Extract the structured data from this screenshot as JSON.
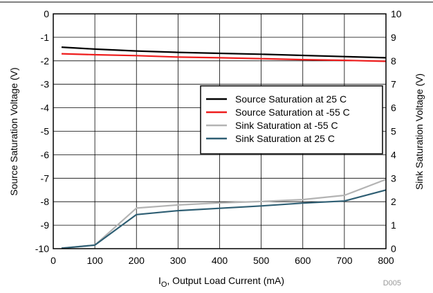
{
  "chart_data": {
    "type": "line",
    "xlabel_main": "I",
    "xlabel_sub": "O",
    "xlabel_rest": ", Output Load Current (mA)",
    "ylabel_left": "Source Saturation Voltage (V)",
    "ylabel_right": "Sink Saturation Voltage (V)",
    "watermark": "D005",
    "xlim": [
      0,
      800
    ],
    "ylim_left": [
      -10,
      0
    ],
    "ylim_right": [
      0,
      10
    ],
    "x_ticks": [
      "0",
      "100",
      "200",
      "300",
      "400",
      "500",
      "600",
      "700",
      "800"
    ],
    "y_left_ticks": [
      "0",
      "-1",
      "-2",
      "-3",
      "-4",
      "-5",
      "-6",
      "-7",
      "-8",
      "-9",
      "-10"
    ],
    "y_right_ticks": [
      "10",
      "9",
      "8",
      "7",
      "6",
      "5",
      "4",
      "3",
      "2",
      "1",
      "0"
    ],
    "grid": true,
    "legend_position": "center-right",
    "series": [
      {
        "name": "Source Saturation at 25 C",
        "axis": "left",
        "color": "#000000",
        "x": [
          20,
          100,
          200,
          300,
          400,
          500,
          600,
          700,
          800
        ],
        "y": [
          -1.42,
          -1.5,
          -1.58,
          -1.64,
          -1.68,
          -1.72,
          -1.77,
          -1.82,
          -1.87
        ]
      },
      {
        "name": "Source Saturation at -55 C",
        "axis": "left",
        "color": "#ee1c1c",
        "x": [
          20,
          100,
          200,
          300,
          400,
          500,
          600,
          700,
          800
        ],
        "y": [
          -1.7,
          -1.74,
          -1.78,
          -1.84,
          -1.87,
          -1.91,
          -1.95,
          -1.98,
          -2.02
        ]
      },
      {
        "name": "Sink Saturation at -55 C",
        "axis": "right",
        "color": "#b3b3b3",
        "x": [
          20,
          100,
          200,
          300,
          400,
          500,
          600,
          700,
          800
        ],
        "y": [
          0.02,
          0.15,
          1.73,
          1.86,
          1.95,
          2.01,
          2.09,
          2.27,
          2.95
        ]
      },
      {
        "name": "Sink Saturation at 25 C",
        "axis": "right",
        "color": "#2e5e73",
        "x": [
          20,
          100,
          200,
          300,
          400,
          500,
          600,
          700,
          800
        ],
        "y": [
          0.02,
          0.15,
          1.45,
          1.62,
          1.72,
          1.82,
          1.94,
          2.03,
          2.5
        ]
      }
    ]
  }
}
